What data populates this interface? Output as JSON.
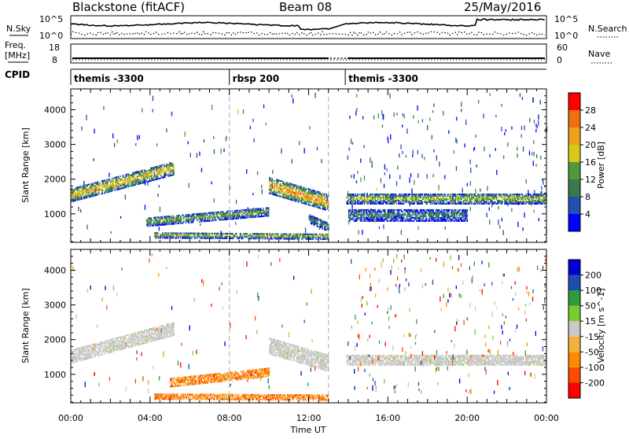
{
  "header": {
    "title": "Blackstone (fitACF)",
    "beam": "Beam 08",
    "date": "25/May/2016"
  },
  "noise_panel": {
    "left_label": "N.Sky",
    "right_label": "N.Search",
    "left_ticks": [
      "10^5",
      "10^0"
    ],
    "right_ticks": [
      "10^5",
      "10^0"
    ]
  },
  "freq_panel": {
    "left_label_1": "Freq.",
    "left_label_2": "[MHz]",
    "right_label": "Nave",
    "left_ticks": [
      "18",
      "8"
    ],
    "right_ticks": [
      "60",
      "0"
    ]
  },
  "cpid_panel": {
    "label": "CPID",
    "segments": [
      {
        "start_hour": 0,
        "end_hour": 8,
        "text": "themis -3300"
      },
      {
        "start_hour": 8,
        "end_hour": 13,
        "text": "rbsp 200"
      },
      {
        "start_hour": 13.85,
        "end_hour": 24,
        "text": "themis -3300"
      }
    ]
  },
  "colors": {
    "power_scale": [
      "#0000ff",
      "#2050b0",
      "#3a7a4a",
      "#4f9a3a",
      "#d8c81c",
      "#f0a020",
      "#f07010",
      "#ff0000"
    ],
    "velocity_scale": [
      "#ff0000",
      "#ff4b00",
      "#ff8c00",
      "#f2b13a",
      "#c8c8c8",
      "#7acc2e",
      "#2e9c3a",
      "#1e4db0",
      "#0000d0"
    ],
    "ground_scatter": "#c8c8c8"
  },
  "chart_data": [
    {
      "type": "heatmap",
      "name": "power",
      "xlabel": "",
      "ylabel": "Slant Range [km]",
      "xlim": [
        0,
        24
      ],
      "ylim": [
        180,
        4600
      ],
      "yticks": [
        1000,
        2000,
        3000,
        4000
      ],
      "colorbar": {
        "label": "Power [dB]",
        "ticks": [
          "4",
          "8",
          "12",
          "16",
          "20",
          "24",
          "28"
        ],
        "range": [
          0,
          32
        ]
      },
      "data_gap": [
        13,
        13.85
      ],
      "vertical_markers_hour": [
        8,
        13
      ],
      "scatter_bands": [
        {
          "t_start": 0.0,
          "t_end": 5.2,
          "r_start": 1520,
          "r_end": 2300,
          "width": 380,
          "intensity": 18
        },
        {
          "t_start": 3.8,
          "t_end": 10.0,
          "r_start": 750,
          "r_end": 1050,
          "width": 250,
          "intensity": 12
        },
        {
          "t_start": 4.2,
          "t_end": 13.0,
          "r_start": 370,
          "r_end": 330,
          "width": 160,
          "intensity": 14
        },
        {
          "t_start": 10.0,
          "t_end": 13.0,
          "r_start": 1800,
          "r_end": 1300,
          "width": 460,
          "intensity": 20
        },
        {
          "t_start": 12.0,
          "t_end": 13.0,
          "r_start": 850,
          "r_end": 600,
          "width": 250,
          "intensity": 9
        },
        {
          "t_start": 13.9,
          "t_end": 24.0,
          "r_start": 1420,
          "r_end": 1420,
          "width": 300,
          "intensity": 14
        },
        {
          "t_start": 14.0,
          "t_end": 20.0,
          "r_start": 950,
          "r_end": 950,
          "width": 350,
          "intensity": 8
        }
      ]
    },
    {
      "type": "heatmap",
      "name": "velocity",
      "xlabel": "Time UT",
      "ylabel": "Slant Range [km]",
      "xlim": [
        0,
        24
      ],
      "ylim": [
        180,
        4600
      ],
      "yticks": [
        1000,
        2000,
        3000,
        4000
      ],
      "xtick_labels": [
        "00:00",
        "04:00",
        "08:00",
        "12:00",
        "16:00",
        "20:00",
        "00:00"
      ],
      "xtick_hours": [
        0,
        4,
        8,
        12,
        16,
        20,
        24
      ],
      "colorbar": {
        "label": "Velocity [m s^-1]",
        "ticks": [
          "-200",
          "-100",
          "-50",
          "-15",
          "15",
          "50",
          "100",
          "200"
        ]
      },
      "data_gap": [
        13,
        13.85
      ],
      "vertical_markers_hour": [
        8,
        13
      ],
      "scatter_bands": [
        {
          "t_start": 0.0,
          "t_end": 5.2,
          "r_start": 1500,
          "r_end": 2300,
          "width": 380,
          "class": "ground"
        },
        {
          "t_start": 5.0,
          "t_end": 10.0,
          "r_start": 750,
          "r_end": 1050,
          "width": 250,
          "class": "negative"
        },
        {
          "t_start": 4.2,
          "t_end": 13.0,
          "r_start": 350,
          "r_end": 320,
          "width": 160,
          "class": "negative"
        },
        {
          "t_start": 10.0,
          "t_end": 13.0,
          "r_start": 1800,
          "r_end": 1300,
          "width": 460,
          "class": "ground"
        },
        {
          "t_start": 13.9,
          "t_end": 24.0,
          "r_start": 1400,
          "r_end": 1400,
          "width": 300,
          "class": "ground"
        }
      ]
    }
  ]
}
